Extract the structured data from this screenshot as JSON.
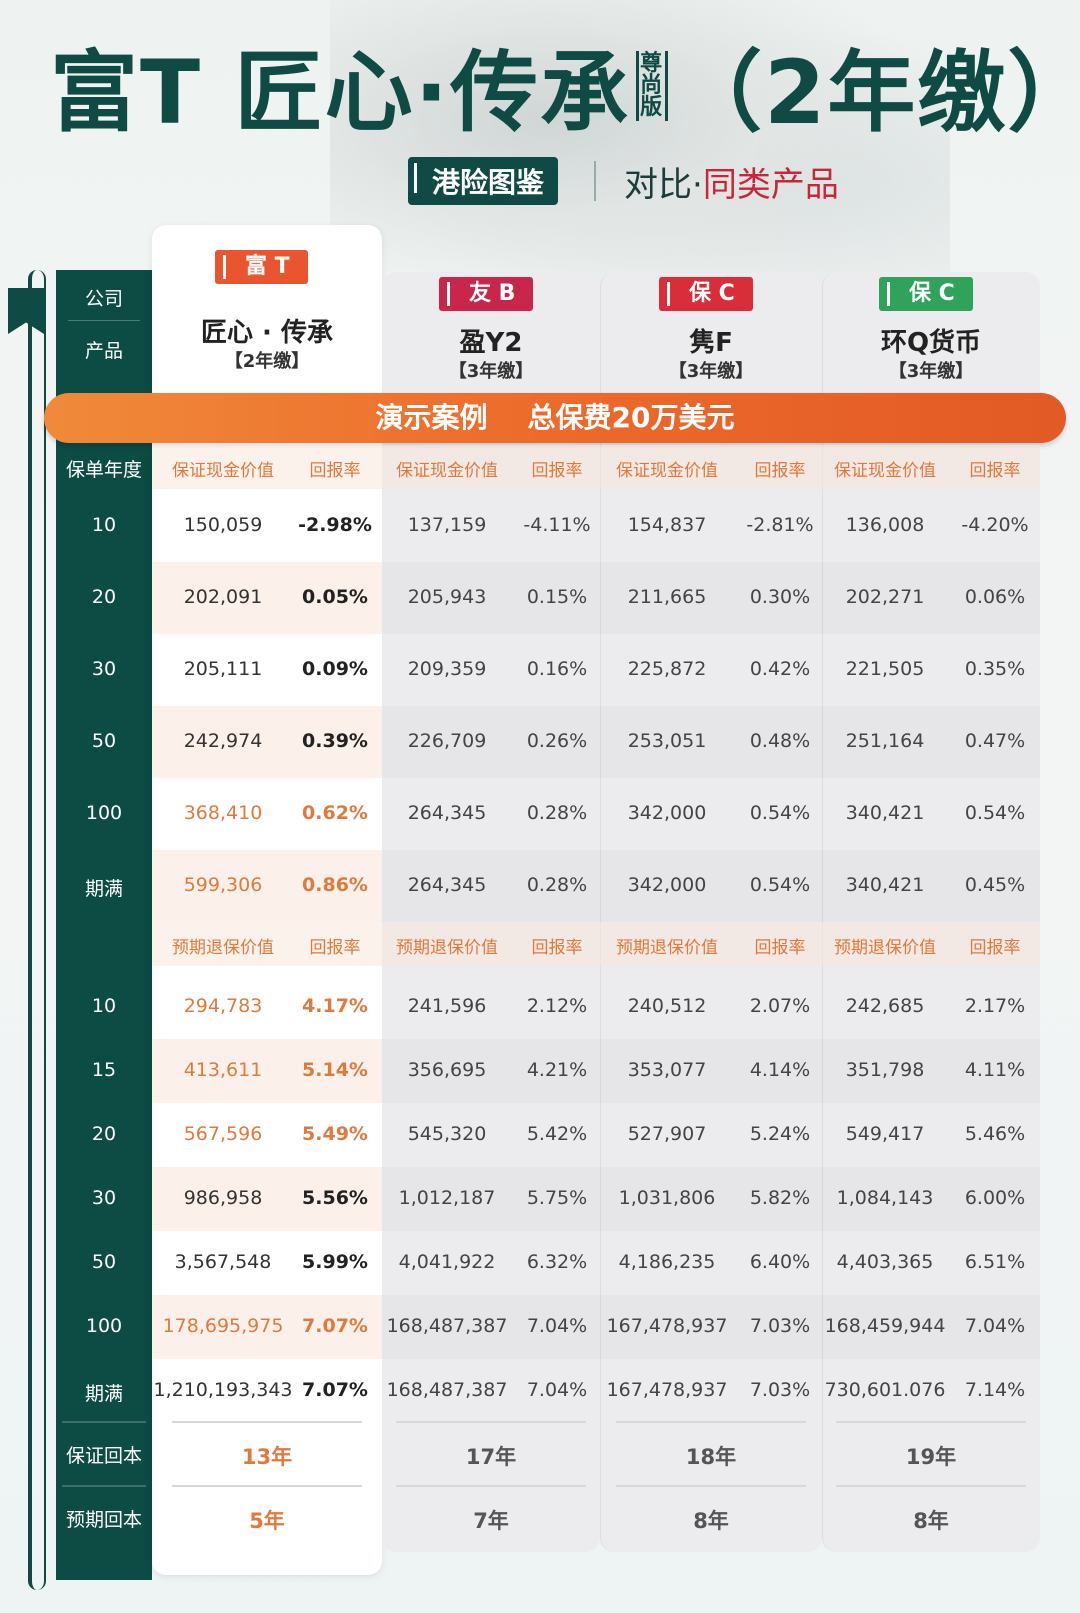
{
  "title": {
    "main": "富T 匠心·传承",
    "edition": [
      "尊",
      "尚",
      "版"
    ],
    "suffix": "（2年缴）"
  },
  "subtitle": {
    "badge": "港险图鉴",
    "compare": "对比·",
    "compare_highlight": "同类产品"
  },
  "side_labels": {
    "company": "公司",
    "product": "产品",
    "policy_year": "保单年度",
    "guaranteed_breakeven": "保证回本",
    "expected_breakeven": "预期回本"
  },
  "products": [
    {
      "company": "富 T",
      "name": "匠心 · 传承",
      "term": "【2年缴】",
      "tag_color": "#e8552f"
    },
    {
      "company": "友 B",
      "name": "盈Y2",
      "term": "【3年缴】",
      "tag_color": "#c8264a"
    },
    {
      "company": "保 C",
      "name": "隽F",
      "term": "【3年缴】",
      "tag_color": "#d92e3a"
    },
    {
      "company": "保 C",
      "name": "环Q货币",
      "term": "【3年缴】",
      "tag_color": "#2fa35a"
    }
  ],
  "banner": {
    "left": "演示案例",
    "right": "总保费20万美元"
  },
  "guaranteed": {
    "value_header": "保证现金价值",
    "rate_header": "回报率",
    "rows": [
      {
        "year": "10",
        "hl": false,
        "cells": [
          [
            "150,059",
            "-2.98%"
          ],
          [
            "137,159",
            "-4.11%"
          ],
          [
            "154,837",
            "-2.81%"
          ],
          [
            "136,008",
            "-4.20%"
          ]
        ]
      },
      {
        "year": "20",
        "hl": false,
        "cells": [
          [
            "202,091",
            "0.05%"
          ],
          [
            "205,943",
            "0.15%"
          ],
          [
            "211,665",
            "0.30%"
          ],
          [
            "202,271",
            "0.06%"
          ]
        ]
      },
      {
        "year": "30",
        "hl": false,
        "cells": [
          [
            "205,111",
            "0.09%"
          ],
          [
            "209,359",
            "0.16%"
          ],
          [
            "225,872",
            "0.42%"
          ],
          [
            "221,505",
            "0.35%"
          ]
        ]
      },
      {
        "year": "50",
        "hl": false,
        "cells": [
          [
            "242,974",
            "0.39%"
          ],
          [
            "226,709",
            "0.26%"
          ],
          [
            "253,051",
            "0.48%"
          ],
          [
            "251,164",
            "0.47%"
          ]
        ]
      },
      {
        "year": "100",
        "hl": true,
        "cells": [
          [
            "368,410",
            "0.62%"
          ],
          [
            "264,345",
            "0.28%"
          ],
          [
            "342,000",
            "0.54%"
          ],
          [
            "340,421",
            "0.54%"
          ]
        ]
      },
      {
        "year": "期满",
        "hl": true,
        "cells": [
          [
            "599,306",
            "0.86%"
          ],
          [
            "264,345",
            "0.28%"
          ],
          [
            "342,000",
            "0.54%"
          ],
          [
            "340,421",
            "0.45%"
          ]
        ]
      }
    ]
  },
  "expected": {
    "value_header": "预期退保价值",
    "rate_header": "回报率",
    "rows": [
      {
        "year": "10",
        "hl": true,
        "cells": [
          [
            "294,783",
            "4.17%"
          ],
          [
            "241,596",
            "2.12%"
          ],
          [
            "240,512",
            "2.07%"
          ],
          [
            "242,685",
            "2.17%"
          ]
        ]
      },
      {
        "year": "15",
        "hl": true,
        "cells": [
          [
            "413,611",
            "5.14%"
          ],
          [
            "356,695",
            "4.21%"
          ],
          [
            "353,077",
            "4.14%"
          ],
          [
            "351,798",
            "4.11%"
          ]
        ]
      },
      {
        "year": "20",
        "hl": true,
        "cells": [
          [
            "567,596",
            "5.49%"
          ],
          [
            "545,320",
            "5.42%"
          ],
          [
            "527,907",
            "5.24%"
          ],
          [
            "549,417",
            "5.46%"
          ]
        ]
      },
      {
        "year": "30",
        "hl": false,
        "cells": [
          [
            "986,958",
            "5.56%"
          ],
          [
            "1,012,187",
            "5.75%"
          ],
          [
            "1,031,806",
            "5.82%"
          ],
          [
            "1,084,143",
            "6.00%"
          ]
        ]
      },
      {
        "year": "50",
        "hl": false,
        "cells": [
          [
            "3,567,548",
            "5.99%"
          ],
          [
            "4,041,922",
            "6.32%"
          ],
          [
            "4,186,235",
            "6.40%"
          ],
          [
            "4,403,365",
            "6.51%"
          ]
        ]
      },
      {
        "year": "100",
        "hl": true,
        "cells": [
          [
            "178,695,975",
            "7.07%"
          ],
          [
            "168,487,387",
            "7.04%"
          ],
          [
            "167,478,937",
            "7.03%"
          ],
          [
            "168,459,944",
            "7.04%"
          ]
        ]
      },
      {
        "year": "期满",
        "hl": false,
        "cells": [
          [
            "1,210,193,343",
            "7.07%"
          ],
          [
            "168,487,387",
            "7.04%"
          ],
          [
            "167,478,937",
            "7.03%"
          ],
          [
            "730,601.076",
            "7.14%"
          ]
        ]
      }
    ]
  },
  "breakeven": {
    "guaranteed": [
      "13年",
      "17年",
      "18年",
      "19年"
    ],
    "expected": [
      "5年",
      "7年",
      "8年",
      "8年"
    ]
  }
}
